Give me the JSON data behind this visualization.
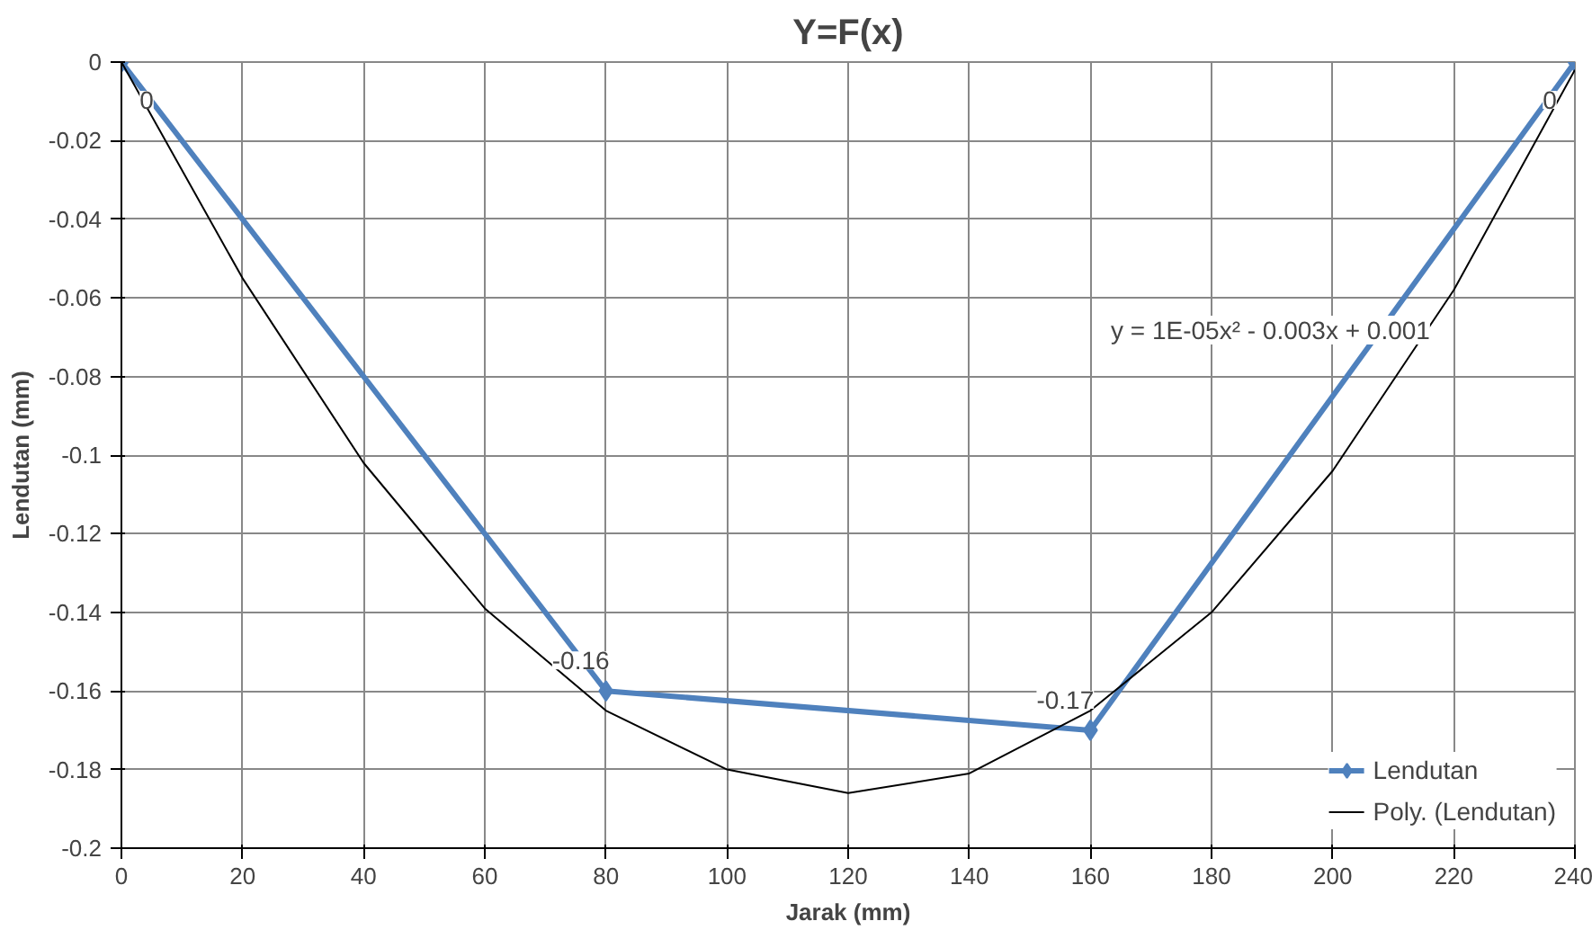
{
  "chart_data": {
    "type": "line",
    "title": "Y=F(x)",
    "xlabel": "Jarak (mm)",
    "ylabel": "Lendutan (mm)",
    "x": [
      0,
      80,
      160,
      240
    ],
    "series": [
      {
        "name": "Lendutan",
        "color": "#4f81bd",
        "values": [
          0,
          -0.16,
          -0.17,
          0
        ],
        "marker": "diamond",
        "value_labels": [
          "0",
          "-0.16",
          "-0.17",
          "0"
        ]
      },
      {
        "name": "Poly. (Lendutan)",
        "color": "#000000",
        "type": "line",
        "marker": "none",
        "x": [
          0,
          20,
          40,
          60,
          80,
          100,
          120,
          140,
          160,
          180,
          200,
          220,
          240
        ],
        "values": [
          0,
          -0.055,
          -0.102,
          -0.139,
          -0.165,
          -0.18,
          -0.186,
          -0.181,
          -0.165,
          -0.14,
          -0.104,
          -0.058,
          -0.002
        ]
      }
    ],
    "annotations": [
      "y = 1E-05x² - 0.003x + 0.001"
    ],
    "xlim": [
      0,
      240
    ],
    "xticks": [
      0,
      20,
      40,
      60,
      80,
      100,
      120,
      140,
      160,
      180,
      200,
      220,
      240
    ],
    "ylim": [
      -0.2,
      0
    ],
    "yticks": [
      0,
      -0.02,
      -0.04,
      -0.06,
      -0.08,
      -0.1,
      -0.12,
      -0.14,
      -0.16,
      -0.18,
      -0.2
    ],
    "grid": true,
    "legend": "bottom right",
    "line_style": "solid"
  }
}
